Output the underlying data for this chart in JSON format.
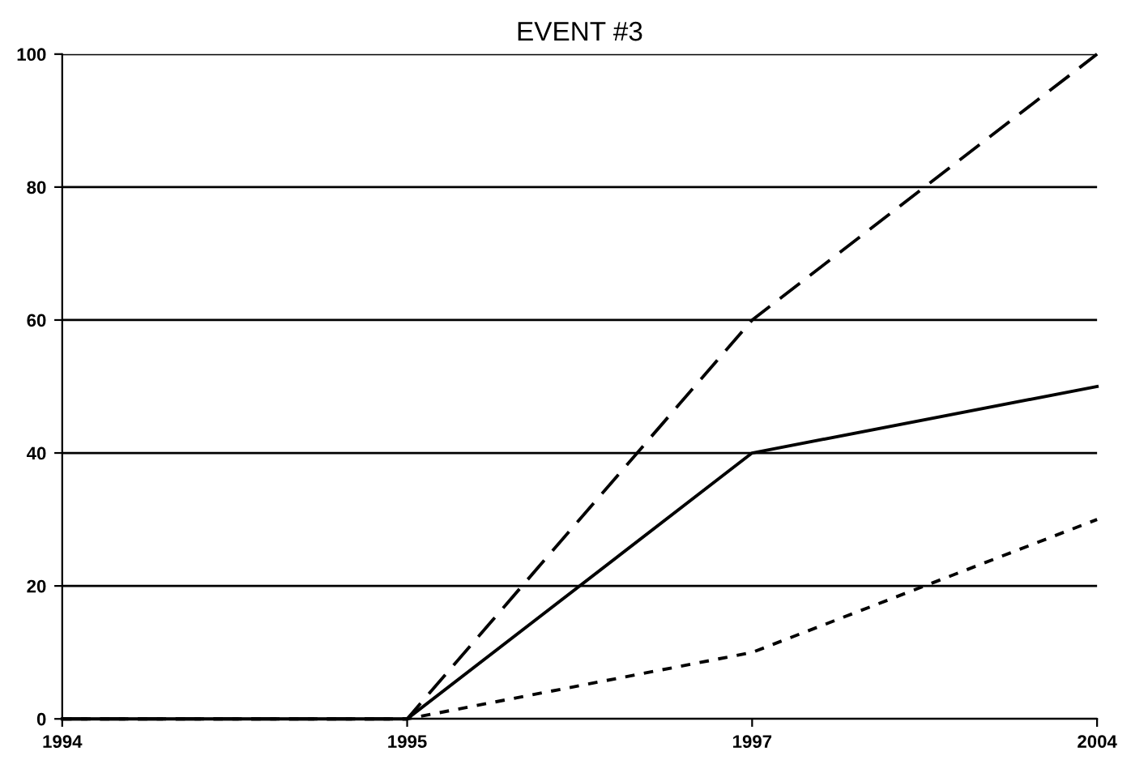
{
  "chart_data": {
    "type": "line",
    "title": "EVENT #3",
    "categories": [
      "1994",
      "1995",
      "1997",
      "2004"
    ],
    "series": [
      {
        "color": "#000000",
        "line_style": "dashed",
        "values": [
          0,
          0,
          60,
          100
        ]
      },
      {
        "color": "#000000",
        "line_style": "solid",
        "values": [
          0,
          0,
          40,
          50
        ]
      },
      {
        "color": "#000000",
        "line_style": "dotted",
        "values": [
          0,
          0,
          10,
          30
        ]
      }
    ],
    "ylim": [
      0,
      100
    ],
    "yticks": [
      0,
      20,
      40,
      60,
      80,
      100
    ],
    "grid": "y",
    "marker": "none"
  }
}
